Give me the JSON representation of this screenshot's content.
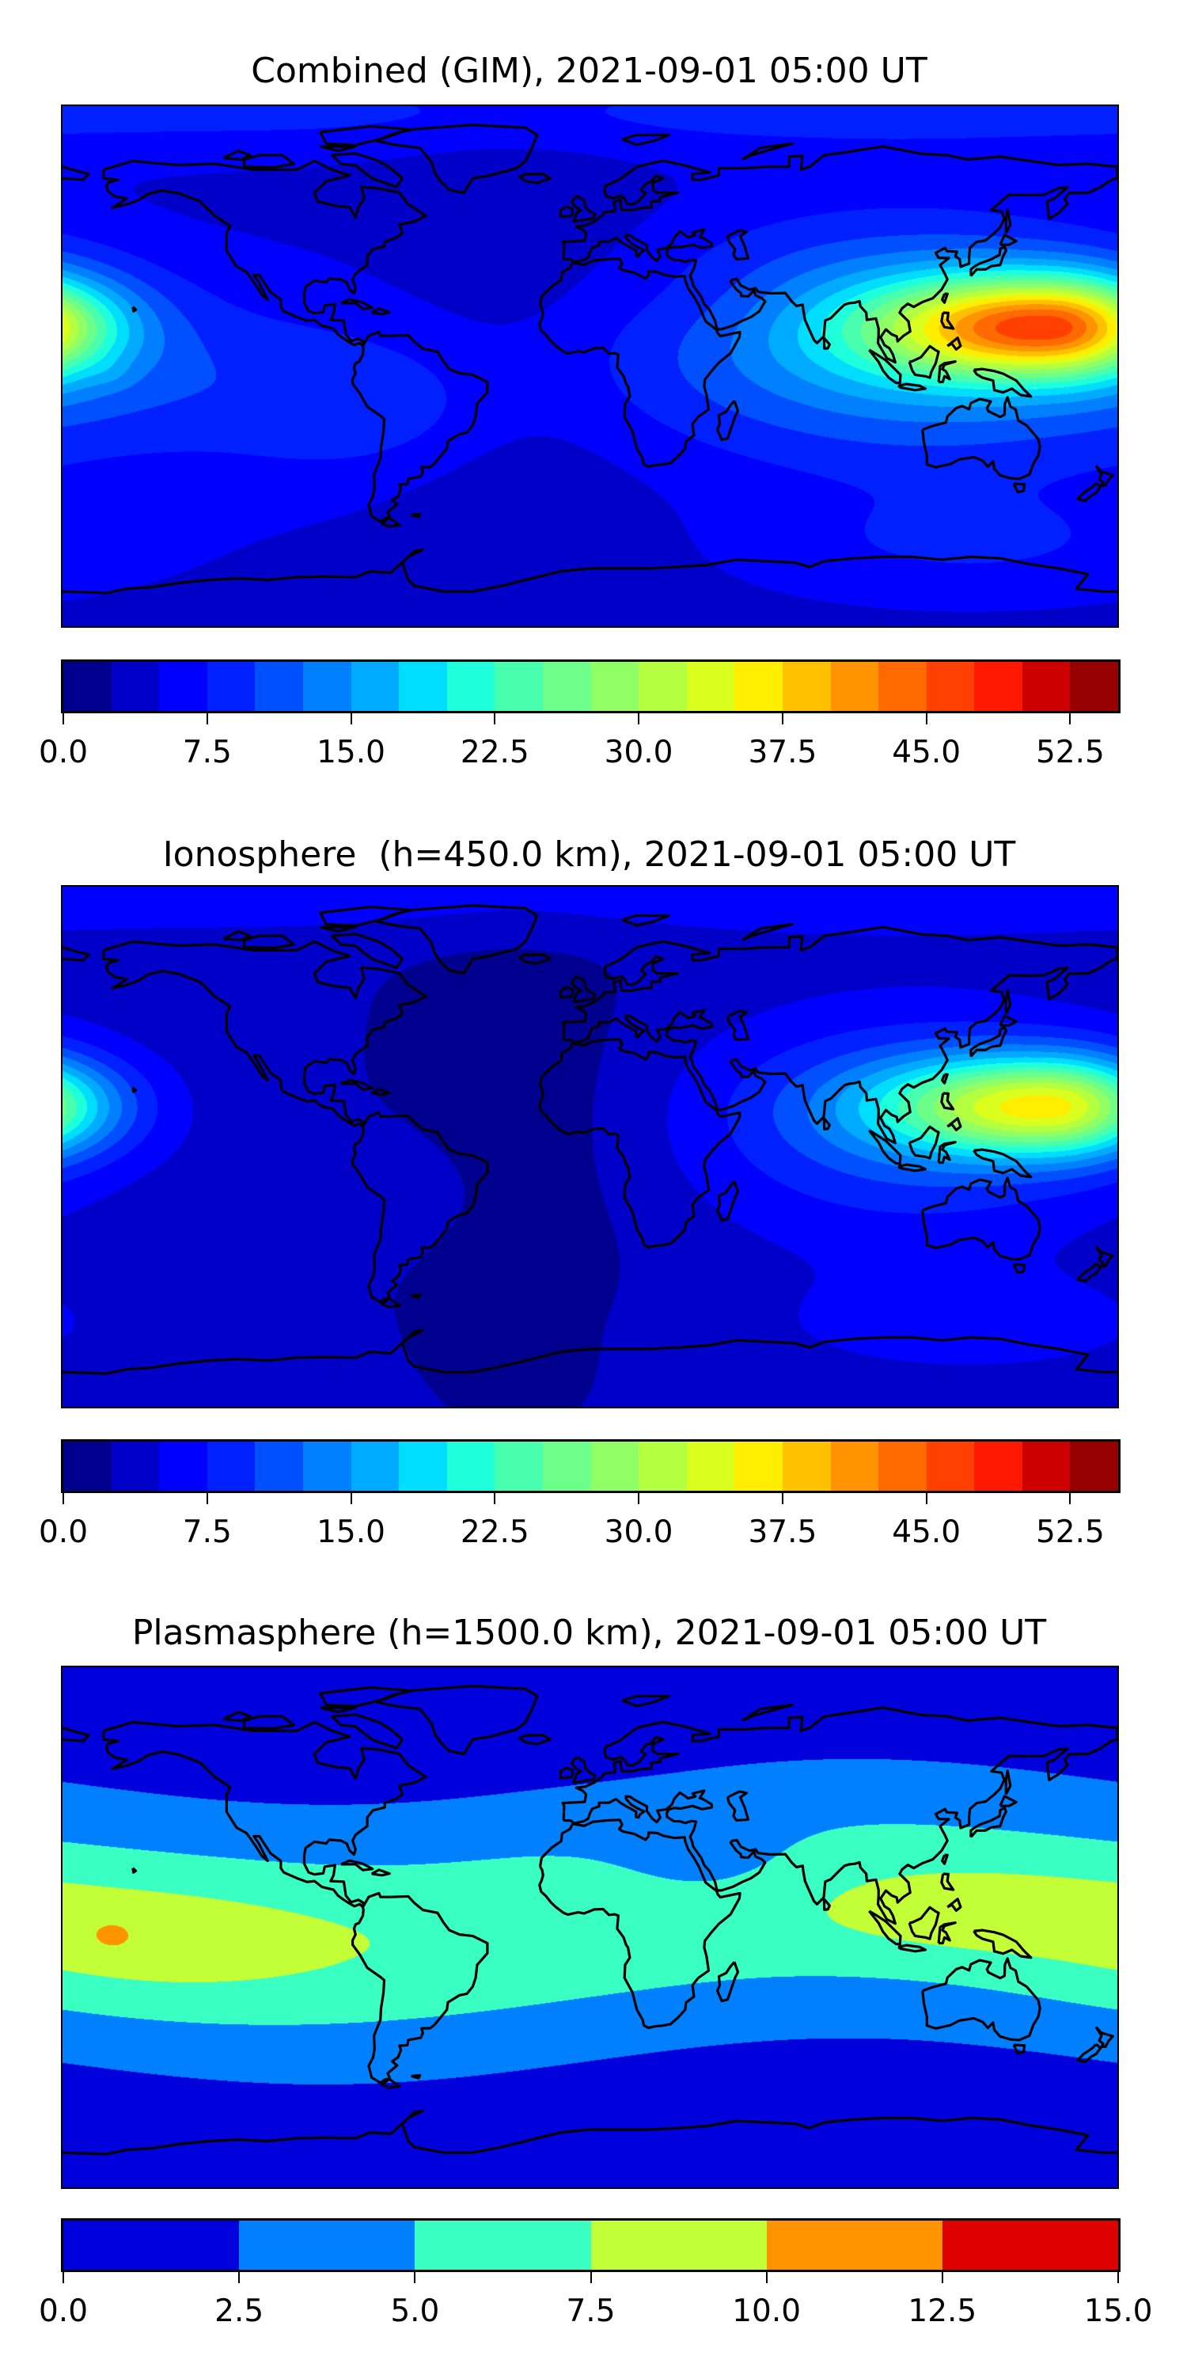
{
  "panels": [
    {
      "title": "Combined (GIM), 2021-09-01 05:00 UT",
      "colorbar": {
        "min": 0,
        "max": 55,
        "step": 2.5,
        "tick_labels": [
          "0.0",
          "7.5",
          "15.0",
          "22.5",
          "30.0",
          "37.5",
          "45.0",
          "52.5"
        ],
        "colors": [
          "#00008f",
          "#0000c8",
          "#0000ff",
          "#0020ff",
          "#0050ff",
          "#0080ff",
          "#00aaff",
          "#00ddff",
          "#1effdc",
          "#48ffb0",
          "#6cff8a",
          "#90ff66",
          "#b4ff40",
          "#daff1e",
          "#ffee00",
          "#ffc000",
          "#ff9400",
          "#ff6a00",
          "#ff4000",
          "#ff1800",
          "#cc0000",
          "#960000"
        ]
      }
    },
    {
      "title": "Ionosphere  (h=450.0 km), 2021-09-01 05:00 UT",
      "colorbar": {
        "min": 0,
        "max": 55,
        "step": 2.5,
        "tick_labels": [
          "0.0",
          "7.5",
          "15.0",
          "22.5",
          "30.0",
          "37.5",
          "45.0",
          "52.5"
        ],
        "colors": [
          "#00008f",
          "#0000c8",
          "#0000ff",
          "#0020ff",
          "#0050ff",
          "#0080ff",
          "#00aaff",
          "#00ddff",
          "#1effdc",
          "#48ffb0",
          "#6cff8a",
          "#90ff66",
          "#b4ff40",
          "#daff1e",
          "#ffee00",
          "#ffc000",
          "#ff9400",
          "#ff6a00",
          "#ff4000",
          "#ff1800",
          "#cc0000",
          "#960000"
        ]
      }
    },
    {
      "title": "Plasmasphere (h=1500.0 km), 2021-09-01 05:00 UT",
      "colorbar": {
        "min": 0,
        "max": 15,
        "step": 2.5,
        "tick_labels": [
          "0.0",
          "2.5",
          "5.0",
          "7.5",
          "10.0",
          "12.5",
          "15.0"
        ],
        "colors": [
          "#0000dc",
          "#0080ff",
          "#3affc2",
          "#c2ff36",
          "#ff9400",
          "#de0000"
        ]
      }
    }
  ]
}
